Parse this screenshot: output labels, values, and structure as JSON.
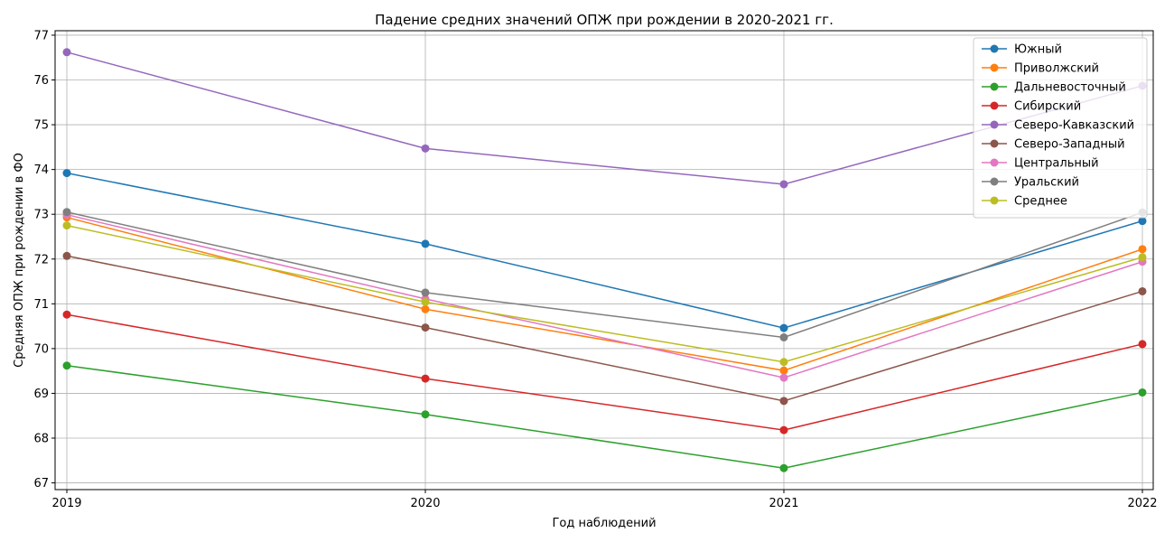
{
  "chart_data": {
    "type": "line",
    "title": "Падение средних значений ОПЖ при рождении в 2020-2021 гг.",
    "xlabel": "Год наблюдений",
    "ylabel": "Средняя ОПЖ при рождении в ФО",
    "x": [
      2019,
      2020,
      2021,
      2022
    ],
    "x_tick_labels": [
      "2019",
      "2020",
      "2021",
      "2022"
    ],
    "xlim": [
      2019,
      2022
    ],
    "ylim": [
      66.85,
      77.1
    ],
    "y_ticks": [
      67,
      68,
      69,
      70,
      71,
      72,
      73,
      74,
      75,
      76,
      77
    ],
    "grid": true,
    "legend_position": "top-right",
    "series": [
      {
        "name": "Южный",
        "color": "#1f77b4",
        "values": [
          73.92,
          72.34,
          70.46,
          72.85
        ]
      },
      {
        "name": "Приволжский",
        "color": "#ff7f0e",
        "values": [
          72.93,
          70.88,
          69.51,
          72.22
        ]
      },
      {
        "name": "Дальневосточный",
        "color": "#2ca02c",
        "values": [
          69.62,
          68.53,
          67.33,
          69.02
        ]
      },
      {
        "name": "Сибирский",
        "color": "#d62728",
        "values": [
          70.76,
          69.33,
          68.18,
          70.1
        ]
      },
      {
        "name": "Северо-Кавказский",
        "color": "#9467bd",
        "values": [
          76.62,
          74.47,
          73.67,
          75.87
        ]
      },
      {
        "name": "Северо-Западный",
        "color": "#8c564b",
        "values": [
          72.07,
          70.47,
          68.83,
          71.28
        ]
      },
      {
        "name": "Центральный",
        "color": "#e377c2",
        "values": [
          72.99,
          71.11,
          69.35,
          71.94
        ]
      },
      {
        "name": "Уральский",
        "color": "#7f7f7f",
        "values": [
          73.05,
          71.25,
          70.25,
          73.04
        ]
      },
      {
        "name": "Среднее",
        "color": "#bcbd22",
        "values": [
          72.75,
          71.04,
          69.7,
          72.04
        ]
      }
    ]
  }
}
